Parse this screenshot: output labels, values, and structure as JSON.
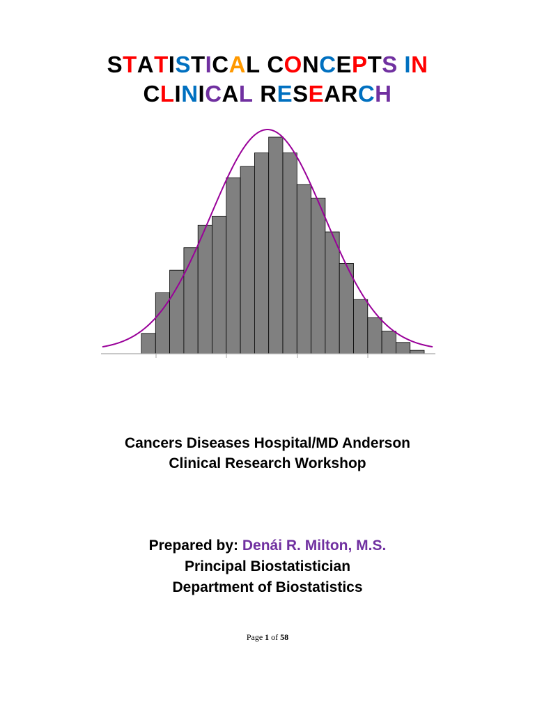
{
  "title": {
    "lines": [
      [
        {
          "t": "S",
          "c": "#000000"
        },
        {
          "t": "T",
          "c": "#ff0000"
        },
        {
          "t": "A",
          "c": "#000000"
        },
        {
          "t": "T",
          "c": "#ff0000"
        },
        {
          "t": "I",
          "c": "#000000"
        },
        {
          "t": "S",
          "c": "#0070c0"
        },
        {
          "t": "T",
          "c": "#000000"
        },
        {
          "t": "I",
          "c": "#7030a0"
        },
        {
          "t": "C",
          "c": "#000000"
        },
        {
          "t": "A",
          "c": "#ff9900"
        },
        {
          "t": "L",
          "c": "#000000"
        },
        {
          "t": " ",
          "c": "#000000"
        },
        {
          "t": "C",
          "c": "#000000"
        },
        {
          "t": "O",
          "c": "#ff0000"
        },
        {
          "t": "N",
          "c": "#000000"
        },
        {
          "t": "C",
          "c": "#0070c0"
        },
        {
          "t": "E",
          "c": "#000000"
        },
        {
          "t": "P",
          "c": "#ff0000"
        },
        {
          "t": "T",
          "c": "#000000"
        },
        {
          "t": "S",
          "c": "#7030a0"
        },
        {
          "t": " ",
          "c": "#000000"
        },
        {
          "t": "I",
          "c": "#0070c0"
        },
        {
          "t": "N",
          "c": "#ff0000"
        }
      ],
      [
        {
          "t": "C",
          "c": "#000000"
        },
        {
          "t": "L",
          "c": "#ff0000"
        },
        {
          "t": "I",
          "c": "#000000"
        },
        {
          "t": "N",
          "c": "#0070c0"
        },
        {
          "t": "I",
          "c": "#000000"
        },
        {
          "t": "C",
          "c": "#7030a0"
        },
        {
          "t": "A",
          "c": "#000000"
        },
        {
          "t": "L",
          "c": "#7030a0"
        },
        {
          "t": " ",
          "c": "#000000"
        },
        {
          "t": "R",
          "c": "#000000"
        },
        {
          "t": "E",
          "c": "#0070c0"
        },
        {
          "t": "S",
          "c": "#000000"
        },
        {
          "t": "E",
          "c": "#ff0000"
        },
        {
          "t": "A",
          "c": "#000000"
        },
        {
          "t": "R",
          "c": "#000000"
        },
        {
          "t": "C",
          "c": "#0070c0"
        },
        {
          "t": "H",
          "c": "#7030a0"
        }
      ]
    ]
  },
  "chart_data": {
    "type": "bar",
    "description_type": "histogram with fitted normal curve",
    "values": [
      9,
      27,
      37,
      47,
      57,
      61,
      78,
      83,
      89,
      96,
      89,
      75,
      69,
      54,
      40,
      24,
      16,
      10,
      5,
      1.5
    ],
    "ylim": [
      0,
      100
    ],
    "curve_color": "#990099",
    "bar_fill": "#808080",
    "bar_stroke": "#000000",
    "axis_ticks": 4
  },
  "organization": {
    "line1": "Cancers Diseases Hospital/MD Anderson",
    "line2": "Clinical Research Workshop"
  },
  "prepared": {
    "label": "Prepared by: ",
    "name": "Denái R. Milton, M.S.",
    "title": "Principal Biostatistician",
    "department": "Department of Biostatistics"
  },
  "footer": {
    "page_word": "Page",
    "page_number": "1",
    "of_word": "of",
    "total_pages": "58"
  },
  "colors": {
    "author_name": "#7030a0"
  }
}
